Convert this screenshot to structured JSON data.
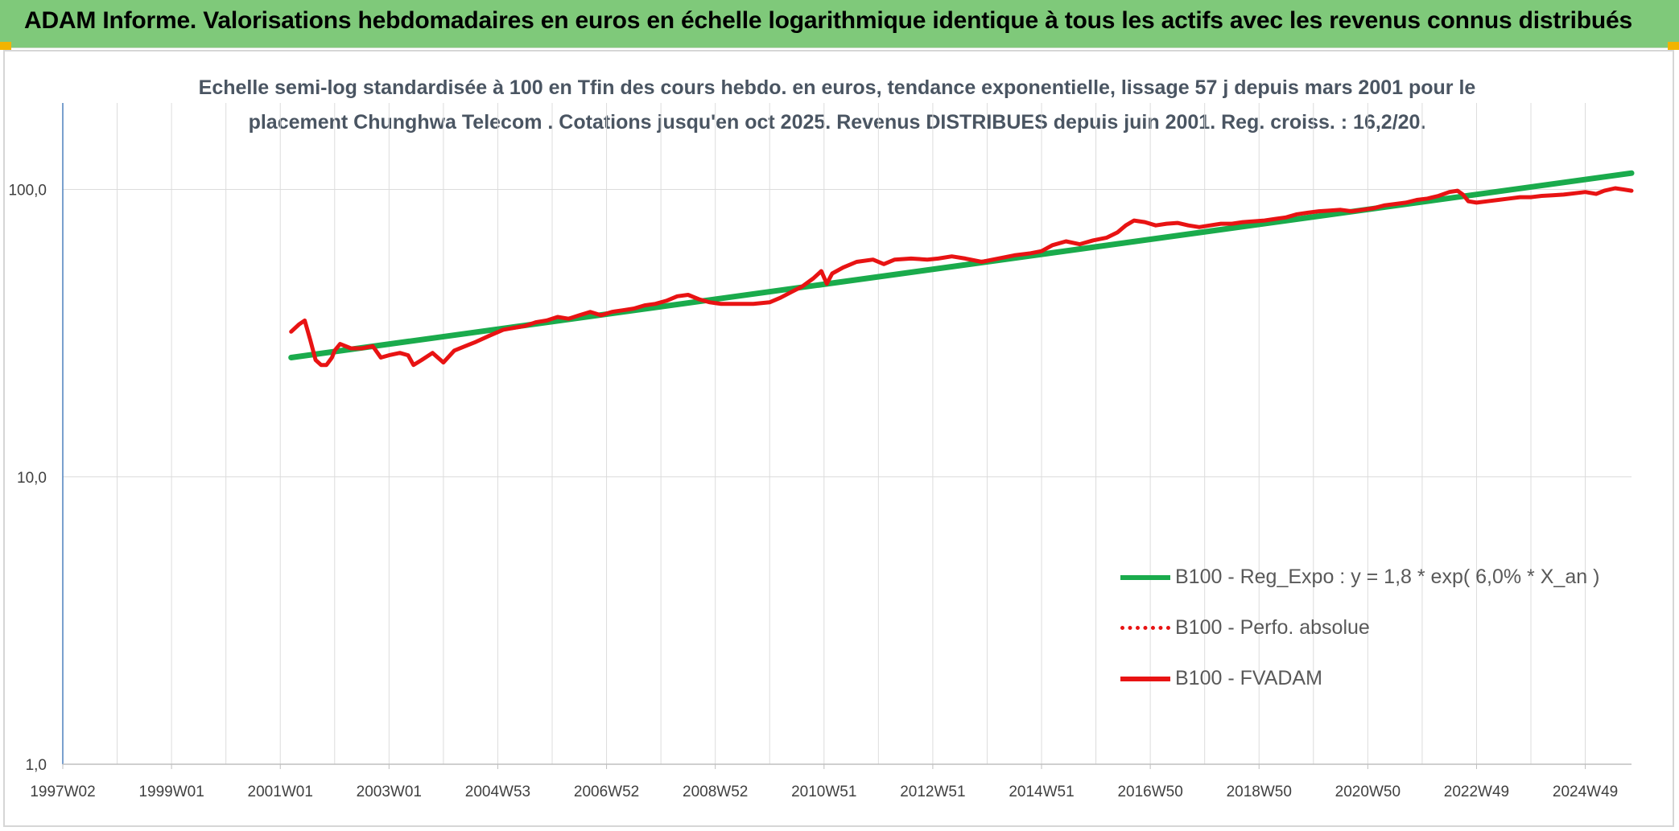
{
  "header": {
    "title": "ADAM Informe. Valorisations hebdomadaires en euros en échelle logarithmique identique à tous les actifs avec les revenus connus distribués"
  },
  "colors": {
    "banner": "#7fc97a",
    "accent_corner": "#f2b400",
    "regression": "#1aab4c",
    "performance": "#e81313"
  },
  "chart_data": {
    "type": "line",
    "title_lines": [
      "Echelle semi-log standardisée à 100 en Tfin des cours hebdo. en euros, tendance exponentielle, lissage 57 j depuis mars 2001 pour le",
      "placement Chunghwa Telecom . Cotations jusqu'en oct 2025. Revenus DISTRIBUES depuis juin 2001. Reg. croiss. : 16,2/20."
    ],
    "y_scale": "log",
    "ylim": [
      1,
      200
    ],
    "y_ticks": [
      {
        "value": 1,
        "label": "1,0"
      },
      {
        "value": 10,
        "label": "10,0"
      },
      {
        "value": 100,
        "label": "100,0"
      }
    ],
    "xlim": [
      1997.0,
      2025.85
    ],
    "x_ticks": [
      {
        "value": 1997.0,
        "label": "1997W02"
      },
      {
        "value": 1999.0,
        "label": "1999W01"
      },
      {
        "value": 2001.0,
        "label": "2001W01"
      },
      {
        "value": 2003.0,
        "label": "2003W01"
      },
      {
        "value": 2005.0,
        "label": "2004W53"
      },
      {
        "value": 2007.0,
        "label": "2006W52"
      },
      {
        "value": 2009.0,
        "label": "2008W52"
      },
      {
        "value": 2011.0,
        "label": "2010W51"
      },
      {
        "value": 2013.0,
        "label": "2012W51"
      },
      {
        "value": 2015.0,
        "label": "2014W51"
      },
      {
        "value": 2017.0,
        "label": "2016W50"
      },
      {
        "value": 2019.0,
        "label": "2018W50"
      },
      {
        "value": 2021.0,
        "label": "2020W50"
      },
      {
        "value": 2023.0,
        "label": "2022W49"
      },
      {
        "value": 2025.0,
        "label": "2024W49"
      }
    ],
    "minor_gridlines": [
      1998.0,
      2000.0,
      2002.0,
      2004.0,
      2006.0,
      2008.0,
      2010.0,
      2012.0,
      2014.0,
      2016.0,
      2018.0,
      2020.0,
      2022.0,
      2024.0
    ],
    "grid": true,
    "legend_position": "bottom-right",
    "series": [
      {
        "name": "B100 - Reg_Expo : y = 1,8 * exp( 6,0% *  X_an )",
        "style": "solid",
        "color": "#1aab4c",
        "points": [
          [
            2001.2,
            26.0
          ],
          [
            2025.85,
            114.0
          ]
        ]
      },
      {
        "name": "B100 - Perfo. absolue",
        "style": "dotted",
        "color": "#e81313",
        "points": []
      },
      {
        "name": "B100 - FVADAM",
        "style": "solid",
        "color": "#e81313",
        "points": [
          [
            2001.2,
            32
          ],
          [
            2001.35,
            34
          ],
          [
            2001.45,
            35
          ],
          [
            2001.55,
            30
          ],
          [
            2001.65,
            25.5
          ],
          [
            2001.75,
            24.5
          ],
          [
            2001.85,
            24.5
          ],
          [
            2001.95,
            26
          ],
          [
            2002.0,
            27.5
          ],
          [
            2002.1,
            29
          ],
          [
            2002.3,
            28
          ],
          [
            2002.5,
            28
          ],
          [
            2002.7,
            28.5
          ],
          [
            2002.85,
            26
          ],
          [
            2003.0,
            26.5
          ],
          [
            2003.2,
            27
          ],
          [
            2003.35,
            26.5
          ],
          [
            2003.45,
            24.5
          ],
          [
            2003.6,
            25.5
          ],
          [
            2003.8,
            27
          ],
          [
            2004.0,
            25
          ],
          [
            2004.2,
            27.5
          ],
          [
            2004.4,
            28.5
          ],
          [
            2004.6,
            29.5
          ],
          [
            2004.85,
            31
          ],
          [
            2005.1,
            32.5
          ],
          [
            2005.3,
            33
          ],
          [
            2005.5,
            33.5
          ],
          [
            2005.7,
            34.5
          ],
          [
            2005.9,
            35
          ],
          [
            2006.1,
            36
          ],
          [
            2006.3,
            35.5
          ],
          [
            2006.5,
            36.5
          ],
          [
            2006.7,
            37.5
          ],
          [
            2006.9,
            36.5
          ],
          [
            2007.1,
            37.5
          ],
          [
            2007.3,
            38
          ],
          [
            2007.5,
            38.5
          ],
          [
            2007.7,
            39.5
          ],
          [
            2007.9,
            40
          ],
          [
            2008.1,
            41
          ],
          [
            2008.3,
            42.5
          ],
          [
            2008.5,
            43
          ],
          [
            2008.7,
            41.5
          ],
          [
            2008.9,
            40.5
          ],
          [
            2009.1,
            40
          ],
          [
            2009.4,
            40
          ],
          [
            2009.7,
            40
          ],
          [
            2010.0,
            40.5
          ],
          [
            2010.2,
            42
          ],
          [
            2010.4,
            44
          ],
          [
            2010.6,
            46
          ],
          [
            2010.8,
            49
          ],
          [
            2010.95,
            52
          ],
          [
            2011.05,
            47
          ],
          [
            2011.15,
            51
          ],
          [
            2011.35,
            53.5
          ],
          [
            2011.6,
            56
          ],
          [
            2011.9,
            57
          ],
          [
            2012.1,
            55
          ],
          [
            2012.3,
            57
          ],
          [
            2012.6,
            57.5
          ],
          [
            2012.9,
            57
          ],
          [
            2013.1,
            57.5
          ],
          [
            2013.35,
            58.5
          ],
          [
            2013.6,
            57.5
          ],
          [
            2013.9,
            56
          ],
          [
            2014.2,
            57.5
          ],
          [
            2014.5,
            59
          ],
          [
            2014.8,
            60
          ],
          [
            2015.0,
            61
          ],
          [
            2015.2,
            64
          ],
          [
            2015.45,
            66
          ],
          [
            2015.7,
            64.5
          ],
          [
            2015.95,
            66.5
          ],
          [
            2016.2,
            68
          ],
          [
            2016.4,
            71
          ],
          [
            2016.55,
            75
          ],
          [
            2016.7,
            78
          ],
          [
            2016.9,
            77
          ],
          [
            2017.1,
            75
          ],
          [
            2017.3,
            76
          ],
          [
            2017.5,
            76.5
          ],
          [
            2017.7,
            75
          ],
          [
            2017.9,
            74
          ],
          [
            2018.1,
            75
          ],
          [
            2018.3,
            76
          ],
          [
            2018.5,
            76
          ],
          [
            2018.7,
            77
          ],
          [
            2018.9,
            77.5
          ],
          [
            2019.1,
            78
          ],
          [
            2019.3,
            79
          ],
          [
            2019.5,
            80
          ],
          [
            2019.7,
            82
          ],
          [
            2019.9,
            83
          ],
          [
            2020.1,
            84
          ],
          [
            2020.3,
            84.5
          ],
          [
            2020.5,
            85
          ],
          [
            2020.7,
            84
          ],
          [
            2020.9,
            85
          ],
          [
            2021.1,
            86
          ],
          [
            2021.3,
            88
          ],
          [
            2021.5,
            89
          ],
          [
            2021.7,
            90
          ],
          [
            2021.9,
            92
          ],
          [
            2022.1,
            93
          ],
          [
            2022.3,
            95
          ],
          [
            2022.5,
            98
          ],
          [
            2022.65,
            99
          ],
          [
            2022.75,
            96
          ],
          [
            2022.85,
            91
          ],
          [
            2023.0,
            90
          ],
          [
            2023.2,
            91
          ],
          [
            2023.4,
            92
          ],
          [
            2023.6,
            93
          ],
          [
            2023.8,
            94
          ],
          [
            2024.0,
            94
          ],
          [
            2024.2,
            95
          ],
          [
            2024.4,
            95.5
          ],
          [
            2024.6,
            96
          ],
          [
            2024.8,
            97
          ],
          [
            2025.0,
            98
          ],
          [
            2025.2,
            96.5
          ],
          [
            2025.35,
            99
          ],
          [
            2025.55,
            101
          ],
          [
            2025.7,
            100
          ],
          [
            2025.85,
            99
          ]
        ]
      }
    ]
  }
}
